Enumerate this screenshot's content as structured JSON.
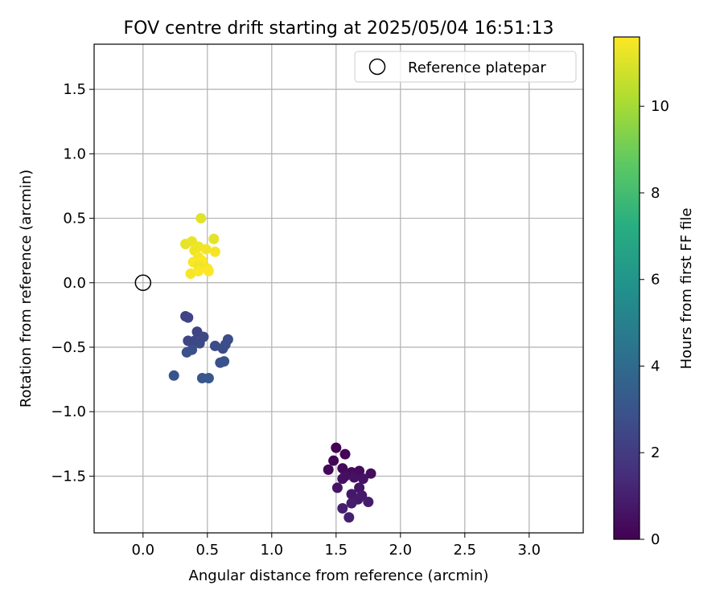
{
  "chart_data": {
    "type": "scatter",
    "title": "FOV centre drift starting at 2025/05/04 16:51:13",
    "xlabel": "Angular distance from reference (arcmin)",
    "ylabel": "Rotation from reference (arcmin)",
    "xlim": [
      -0.38,
      3.42
    ],
    "ylim": [
      -1.94,
      1.85
    ],
    "x_ticks": [
      0.0,
      0.5,
      1.0,
      1.5,
      2.0,
      2.5,
      3.0
    ],
    "x_tick_labels": [
      "0.0",
      "0.5",
      "1.0",
      "1.5",
      "2.0",
      "2.5",
      "3.0"
    ],
    "y_ticks": [
      -1.5,
      -1.0,
      -0.5,
      0.0,
      0.5,
      1.0,
      1.5
    ],
    "y_tick_labels": [
      "−1.5",
      "−1.0",
      "−0.5",
      "0.0",
      "0.5",
      "1.0",
      "1.5"
    ],
    "grid": true,
    "legend": {
      "position": "top-right",
      "entries": [
        {
          "label": "Reference platepar",
          "marker": "open-circle"
        }
      ]
    },
    "reference_point": {
      "x": 0.0,
      "y": 0.0
    },
    "colormap": "viridis",
    "colorbar": {
      "label": "Hours from first FF file",
      "range": [
        0,
        11.6
      ],
      "ticks": [
        0,
        2,
        4,
        6,
        8,
        10
      ],
      "tick_labels": [
        "0",
        "2",
        "4",
        "6",
        "8",
        "10"
      ]
    },
    "points": [
      {
        "x": 1.5,
        "y": -1.28,
        "hours": 0.05
      },
      {
        "x": 1.57,
        "y": -1.33,
        "hours": 0.1
      },
      {
        "x": 1.48,
        "y": -1.38,
        "hours": 0.15
      },
      {
        "x": 1.44,
        "y": -1.45,
        "hours": 0.2
      },
      {
        "x": 1.55,
        "y": -1.44,
        "hours": 0.25
      },
      {
        "x": 1.62,
        "y": -1.47,
        "hours": 0.3
      },
      {
        "x": 1.68,
        "y": -1.46,
        "hours": 0.35
      },
      {
        "x": 1.77,
        "y": -1.48,
        "hours": 0.4
      },
      {
        "x": 1.57,
        "y": -1.5,
        "hours": 0.45
      },
      {
        "x": 1.55,
        "y": -1.52,
        "hours": 0.5
      },
      {
        "x": 1.64,
        "y": -1.51,
        "hours": 0.55
      },
      {
        "x": 1.71,
        "y": -1.52,
        "hours": 0.6
      },
      {
        "x": 1.51,
        "y": -1.59,
        "hours": 0.65
      },
      {
        "x": 1.68,
        "y": -1.59,
        "hours": 0.7
      },
      {
        "x": 1.62,
        "y": -1.64,
        "hours": 0.75
      },
      {
        "x": 1.7,
        "y": -1.65,
        "hours": 0.8
      },
      {
        "x": 1.67,
        "y": -1.68,
        "hours": 0.85
      },
      {
        "x": 1.75,
        "y": -1.7,
        "hours": 0.9
      },
      {
        "x": 1.62,
        "y": -1.71,
        "hours": 0.95
      },
      {
        "x": 1.55,
        "y": -1.75,
        "hours": 1.0
      },
      {
        "x": 1.6,
        "y": -1.82,
        "hours": 1.05
      },
      {
        "x": 0.33,
        "y": -0.26,
        "hours": 2.3
      },
      {
        "x": 0.35,
        "y": -0.27,
        "hours": 2.35
      },
      {
        "x": 0.42,
        "y": -0.38,
        "hours": 2.4
      },
      {
        "x": 0.35,
        "y": -0.45,
        "hours": 2.45
      },
      {
        "x": 0.4,
        "y": -0.45,
        "hours": 2.5
      },
      {
        "x": 0.47,
        "y": -0.42,
        "hours": 2.55
      },
      {
        "x": 0.44,
        "y": -0.47,
        "hours": 2.6
      },
      {
        "x": 0.56,
        "y": -0.49,
        "hours": 2.65
      },
      {
        "x": 0.62,
        "y": -0.51,
        "hours": 2.7
      },
      {
        "x": 0.66,
        "y": -0.44,
        "hours": 2.75
      },
      {
        "x": 0.64,
        "y": -0.48,
        "hours": 2.8
      },
      {
        "x": 0.38,
        "y": -0.52,
        "hours": 2.85
      },
      {
        "x": 0.34,
        "y": -0.54,
        "hours": 2.9
      },
      {
        "x": 0.6,
        "y": -0.62,
        "hours": 2.95
      },
      {
        "x": 0.63,
        "y": -0.61,
        "hours": 3.0
      },
      {
        "x": 0.24,
        "y": -0.72,
        "hours": 3.05
      },
      {
        "x": 0.46,
        "y": -0.74,
        "hours": 3.1
      },
      {
        "x": 0.51,
        "y": -0.74,
        "hours": 3.15
      },
      {
        "x": 0.45,
        "y": 0.5,
        "hours": 11.1
      },
      {
        "x": 0.55,
        "y": 0.34,
        "hours": 11.15
      },
      {
        "x": 0.33,
        "y": 0.3,
        "hours": 11.2
      },
      {
        "x": 0.38,
        "y": 0.32,
        "hours": 11.25
      },
      {
        "x": 0.43,
        "y": 0.28,
        "hours": 11.3
      },
      {
        "x": 0.4,
        "y": 0.25,
        "hours": 11.35
      },
      {
        "x": 0.49,
        "y": 0.26,
        "hours": 11.4
      },
      {
        "x": 0.56,
        "y": 0.24,
        "hours": 11.45
      },
      {
        "x": 0.43,
        "y": 0.2,
        "hours": 11.5
      },
      {
        "x": 0.39,
        "y": 0.16,
        "hours": 11.55
      },
      {
        "x": 0.46,
        "y": 0.17,
        "hours": 11.6
      },
      {
        "x": 0.43,
        "y": 0.13,
        "hours": 11.4
      },
      {
        "x": 0.5,
        "y": 0.11,
        "hours": 11.45
      },
      {
        "x": 0.37,
        "y": 0.07,
        "hours": 11.5
      },
      {
        "x": 0.43,
        "y": 0.09,
        "hours": 11.55
      },
      {
        "x": 0.51,
        "y": 0.09,
        "hours": 11.6
      }
    ]
  }
}
